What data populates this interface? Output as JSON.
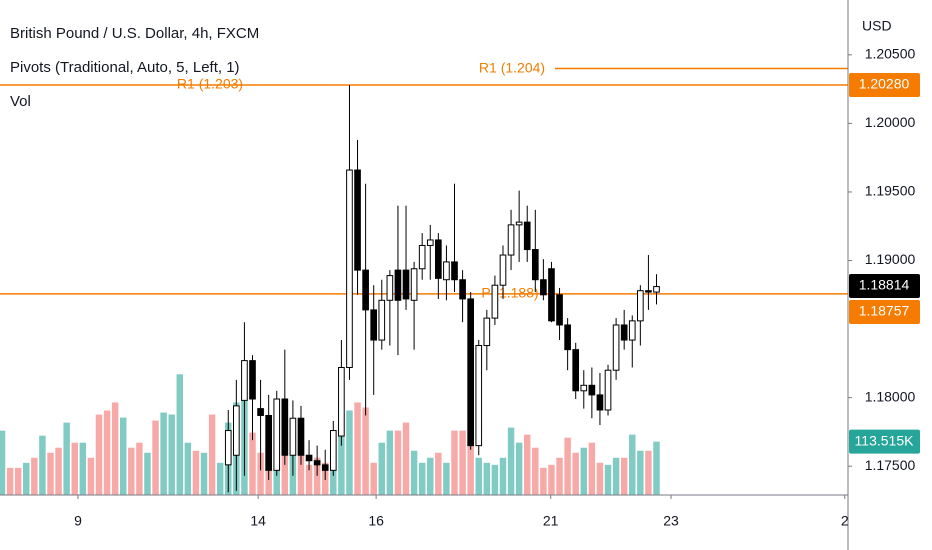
{
  "chart_data": {
    "type": "candlestick",
    "title": "British Pound / U.S. Dollar, 4h, FXCM",
    "indicator_labels": [
      "Pivots (Traditional, Auto, 5, Left, 1)",
      "Vol"
    ],
    "currency": "USD",
    "ylim": [
      1.1729,
      1.209
    ],
    "yticks": [
      {
        "value": 1.175,
        "label": "1.17500"
      },
      {
        "value": 1.18,
        "label": "1.18000"
      },
      {
        "value": 1.19,
        "label": "1.19000"
      },
      {
        "value": 1.195,
        "label": "1.19500"
      },
      {
        "value": 1.2,
        "label": "1.20000"
      },
      {
        "value": 1.205,
        "label": "1.20500"
      }
    ],
    "xlim": [
      -0.25,
      104.7
    ],
    "xticks": [
      {
        "value": 9.4,
        "label": "9"
      },
      {
        "value": 31.7,
        "label": "14"
      },
      {
        "value": 46.3,
        "label": "16"
      },
      {
        "value": 67.9,
        "label": "21"
      },
      {
        "value": 82.8,
        "label": "23"
      },
      {
        "value": 104.3,
        "label": "2"
      }
    ],
    "candles": {
      "up_color": "#ffffff",
      "down_color": "#000000",
      "open": [
        null,
        null,
        null,
        null,
        null,
        null,
        null,
        null,
        null,
        null,
        null,
        null,
        null,
        null,
        null,
        null,
        null,
        null,
        null,
        null,
        null,
        null,
        null,
        null,
        null,
        null,
        null,
        null,
        1.1751,
        1.1758,
        1.1798,
        1.1827,
        1.1792,
        1.1787,
        1.1747,
        1.1799,
        1.1758,
        1.1785,
        1.1758,
        1.1754,
        1.1751,
        1.1747,
        1.1772,
        1.1822,
        1.1966,
        1.1893,
        1.1864,
        1.1842,
        1.1871,
        1.1893,
        1.1893,
        1.1871,
        1.1894,
        1.1911,
        1.1915,
        1.1886,
        1.1899,
        1.1886,
        1.1872,
        1.1765,
        1.1838,
        1.1858,
        1.1882,
        1.1904,
        1.1926,
        1.1928,
        1.1908,
        1.1886,
        1.1894,
        1.1875,
        1.1853,
        1.1835,
        1.1805,
        1.1809,
        1.1802,
        1.1791,
        1.182,
        1.1853,
        1.1842,
        1.1856,
        1.1878,
        1.1877
      ],
      "high": [
        null,
        null,
        null,
        null,
        null,
        null,
        null,
        null,
        null,
        null,
        null,
        null,
        null,
        null,
        null,
        null,
        null,
        null,
        null,
        null,
        null,
        null,
        null,
        null,
        null,
        null,
        null,
        null,
        1.1791,
        1.1813,
        1.1855,
        1.1831,
        1.1813,
        1.1802,
        1.1805,
        1.1835,
        1.1798,
        1.1794,
        1.1769,
        1.1765,
        1.1762,
        1.1783,
        1.1842,
        1.2028,
        1.1988,
        1.1956,
        1.1882,
        1.1886,
        1.1893,
        1.194,
        1.194,
        1.1899,
        1.192,
        1.1926,
        1.192,
        1.1911,
        1.1956,
        1.1893,
        1.1877,
        1.1842,
        1.1864,
        1.1889,
        1.1911,
        1.1937,
        1.1951,
        1.194,
        1.1937,
        1.1901,
        1.1899,
        1.188,
        1.1858,
        1.184,
        1.182,
        1.1822,
        1.1818,
        1.1824,
        1.1858,
        1.1864,
        1.186,
        1.1882,
        1.1904,
        1.189
      ],
      "low": [
        null,
        null,
        null,
        null,
        null,
        null,
        null,
        null,
        null,
        null,
        null,
        null,
        null,
        null,
        null,
        null,
        null,
        null,
        null,
        null,
        null,
        null,
        null,
        null,
        null,
        null,
        null,
        null,
        1.1731,
        1.1732,
        1.1743,
        1.1769,
        1.1747,
        1.174,
        1.1743,
        1.1751,
        1.1743,
        1.1751,
        1.1747,
        1.1743,
        1.174,
        1.1743,
        1.1765,
        1.1813,
        1.1875,
        1.1787,
        1.1802,
        1.1835,
        1.1838,
        1.1831,
        1.1864,
        1.1835,
        1.1886,
        1.1886,
        1.1872,
        1.1871,
        1.1877,
        1.1855,
        1.1762,
        1.1758,
        1.182,
        1.1853,
        1.1872,
        1.1893,
        1.1899,
        1.1899,
        1.1877,
        1.1871,
        1.1855,
        1.1842,
        1.182,
        1.1799,
        1.1792,
        1.1785,
        1.178,
        1.1787,
        1.1813,
        1.1835,
        1.1822,
        1.1838,
        1.1864,
        1.1868
      ],
      "close": [
        null,
        null,
        null,
        null,
        null,
        null,
        null,
        null,
        null,
        null,
        null,
        null,
        null,
        null,
        null,
        null,
        null,
        null,
        null,
        null,
        null,
        null,
        null,
        null,
        null,
        null,
        null,
        null,
        1.1776,
        1.1794,
        1.1827,
        1.1799,
        1.1787,
        1.1747,
        1.1799,
        1.1758,
        1.1785,
        1.1758,
        1.1754,
        1.1751,
        1.1747,
        1.1776,
        1.1822,
        1.1966,
        1.1893,
        1.1864,
        1.1842,
        1.1871,
        1.1889,
        1.1871,
        1.1872,
        1.1894,
        1.1911,
        1.1915,
        1.1887,
        1.1899,
        1.1886,
        1.1872,
        1.1765,
        1.1838,
        1.1858,
        1.1882,
        1.1904,
        1.1926,
        1.1928,
        1.1908,
        1.1886,
        1.1875,
        1.1856,
        1.1853,
        1.1835,
        1.1805,
        1.1809,
        1.1802,
        1.1791,
        1.182,
        1.1853,
        1.1842,
        1.1856,
        1.1878,
        1.1877,
        1.1881
      ]
    },
    "volume": {
      "vlim": [
        0,
        1000000
      ],
      "values": [
        136960,
        57780,
        57780,
        68480,
        79180,
        126260,
        89880,
        100580,
        154080,
        111280,
        111280,
        79180,
        171200,
        179760,
        196880,
        164780,
        100580,
        111280,
        89880,
        158360,
        175480,
        171200,
        256800,
        111280,
        94160,
        89880,
        171200,
        68480,
        154080,
        196880,
        207580,
        132680,
        89880,
        100580,
        175480,
        186180,
        132680,
        111280,
        64200,
        79180,
        68480,
        128400,
        128400,
        179760,
        196880,
        186180,
        68480,
        111280,
        136960,
        136960,
        154080,
        94160,
        68480,
        79180,
        89880,
        68480,
        136960,
        136960,
        164780,
        79180,
        68480,
        64200,
        79180,
        143380,
        111280,
        128400,
        100580,
        57780,
        64200,
        79180,
        121980,
        89880,
        100580,
        111280,
        68480,
        64200,
        79180,
        79180,
        128400,
        94160,
        94160,
        113515
      ],
      "colors": [
        "#80cbc4",
        "#f7a9a7",
        "#f7a9a7",
        "#80cbc4",
        "#f7a9a7",
        "#80cbc4",
        "#f7a9a7",
        "#f7a9a7",
        "#80cbc4",
        "#f7a9a7",
        "#80cbc4",
        "#f7a9a7",
        "#f7a9a7",
        "#f7a9a7",
        "#f7a9a7",
        "#80cbc4",
        "#f7a9a7",
        "#f7a9a7",
        "#80cbc4",
        "#f7a9a7",
        "#80cbc4",
        "#80cbc4",
        "#80cbc4",
        "#80cbc4",
        "#f7a9a7",
        "#80cbc4",
        "#f7a9a7",
        "#80cbc4",
        "#80cbc4",
        "#80cbc4",
        "#80cbc4",
        "#f7a9a7",
        "#f7a9a7",
        "#f7a9a7",
        "#80cbc4",
        "#f7a9a7",
        "#80cbc4",
        "#f7a9a7",
        "#f7a9a7",
        "#f7a9a7",
        "#f7a9a7",
        "#80cbc4",
        "#80cbc4",
        "#80cbc4",
        "#f7a9a7",
        "#f7a9a7",
        "#f7a9a7",
        "#80cbc4",
        "#80cbc4",
        "#f7a9a7",
        "#f7a9a7",
        "#80cbc4",
        "#80cbc4",
        "#80cbc4",
        "#f7a9a7",
        "#80cbc4",
        "#f7a9a7",
        "#f7a9a7",
        "#f7a9a7",
        "#80cbc4",
        "#80cbc4",
        "#80cbc4",
        "#80cbc4",
        "#80cbc4",
        "#80cbc4",
        "#f7a9a7",
        "#f7a9a7",
        "#f7a9a7",
        "#f7a9a7",
        "#f7a9a7",
        "#f7a9a7",
        "#f7a9a7",
        "#80cbc4",
        "#f7a9a7",
        "#f7a9a7",
        "#80cbc4",
        "#80cbc4",
        "#f7a9a7",
        "#80cbc4",
        "#80cbc4",
        "#f7a9a7",
        "#80cbc4"
      ],
      "last_label": "113.515K",
      "tag_color": "#26a69a"
    },
    "levels": [
      {
        "label": "R1 (1.204)",
        "value": 1.204,
        "color": "#f57c00"
      },
      {
        "label": "R1 (1.203)",
        "value": 1.2028,
        "value_label": "1.20280",
        "color": "#f57c00"
      },
      {
        "label": "P (1.188)",
        "value": 1.18757,
        "value_label": "1.18757",
        "color": "#f57c00"
      }
    ],
    "last_price": {
      "value": 1.18814,
      "label": "1.18814",
      "color": "#000000"
    }
  }
}
